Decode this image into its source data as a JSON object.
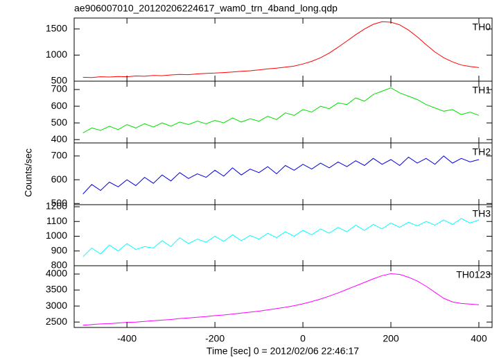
{
  "chart_data": {
    "type": "line",
    "title": "ae906007010_20120206224617_wam0_trn_4band_long.qdp",
    "xlabel": "Time [sec] 0 = 2012/02/06 22:46:17",
    "ylabel": "Counts/sec",
    "xlim": [
      -520,
      430
    ],
    "xticks": [
      -400,
      -200,
      0,
      200,
      400
    ],
    "x": [
      -500,
      -480,
      -460,
      -440,
      -420,
      -400,
      -380,
      -360,
      -340,
      -320,
      -300,
      -280,
      -260,
      -240,
      -220,
      -200,
      -180,
      -160,
      -140,
      -120,
      -100,
      -80,
      -60,
      -40,
      -20,
      0,
      20,
      40,
      60,
      80,
      100,
      120,
      140,
      160,
      180,
      200,
      220,
      240,
      260,
      280,
      300,
      320,
      340,
      360,
      380,
      400
    ],
    "panels": [
      {
        "name": "TH0",
        "color": "#ff0000",
        "ylim": [
          500,
          1710
        ],
        "yticks": [
          500,
          1000,
          1500
        ],
        "values": [
          575,
          570,
          585,
          580,
          590,
          585,
          600,
          595,
          610,
          605,
          620,
          630,
          625,
          640,
          650,
          655,
          665,
          675,
          690,
          700,
          715,
          735,
          750,
          770,
          790,
          830,
          880,
          950,
          1040,
          1150,
          1270,
          1390,
          1500,
          1590,
          1640,
          1630,
          1580,
          1480,
          1350,
          1200,
          1060,
          950,
          870,
          810,
          780,
          760
        ]
      },
      {
        "name": "TH1",
        "color": "#00e000",
        "ylim": [
          380,
          750
        ],
        "yticks": [
          400,
          500,
          600,
          700
        ],
        "values": [
          440,
          470,
          455,
          480,
          460,
          490,
          470,
          495,
          475,
          500,
          480,
          505,
          490,
          510,
          495,
          515,
          500,
          530,
          505,
          525,
          510,
          540,
          520,
          560,
          545,
          580,
          565,
          600,
          585,
          620,
          610,
          650,
          630,
          670,
          690,
          710,
          680,
          660,
          640,
          610,
          590,
          570,
          580,
          550,
          565,
          545
        ]
      },
      {
        "name": "TH2",
        "color": "#0000e0",
        "ylim": [
          495,
          755
        ],
        "yticks": [
          500,
          600,
          700
        ],
        "values": [
          540,
          580,
          555,
          590,
          570,
          600,
          575,
          610,
          585,
          620,
          595,
          630,
          605,
          625,
          610,
          640,
          615,
          650,
          620,
          645,
          630,
          655,
          625,
          660,
          640,
          665,
          645,
          670,
          650,
          675,
          655,
          680,
          660,
          690,
          665,
          685,
          660,
          695,
          670,
          690,
          665,
          700,
          670,
          690,
          675,
          685
        ]
      },
      {
        "name": "TH3",
        "color": "#00ffff",
        "ylim": [
          800,
          1214
        ],
        "yticks": [
          800,
          900,
          1000,
          1100,
          1200
        ],
        "values": [
          860,
          920,
          880,
          940,
          900,
          950,
          910,
          930,
          920,
          970,
          930,
          990,
          950,
          980,
          960,
          1000,
          965,
          1010,
          970,
          1005,
          980,
          1020,
          990,
          1030,
          1000,
          1040,
          1010,
          1050,
          1020,
          1060,
          1030,
          1075,
          1040,
          1080,
          1050,
          1090,
          1060,
          1095,
          1070,
          1100,
          1075,
          1110,
          1080,
          1120,
          1090,
          1110
        ]
      },
      {
        "name": "TH0123",
        "color": "#ff00ff",
        "ylim": [
          2330,
          4260
        ],
        "yticks": [
          2500,
          3000,
          3500,
          4000
        ],
        "values": [
          2400,
          2420,
          2440,
          2450,
          2470,
          2490,
          2500,
          2520,
          2540,
          2560,
          2580,
          2610,
          2630,
          2650,
          2670,
          2700,
          2720,
          2750,
          2780,
          2810,
          2840,
          2880,
          2920,
          2960,
          3010,
          3070,
          3140,
          3220,
          3310,
          3410,
          3520,
          3630,
          3740,
          3850,
          3950,
          4010,
          3990,
          3900,
          3780,
          3620,
          3430,
          3240,
          3130,
          3080,
          3060,
          3040
        ]
      }
    ]
  }
}
